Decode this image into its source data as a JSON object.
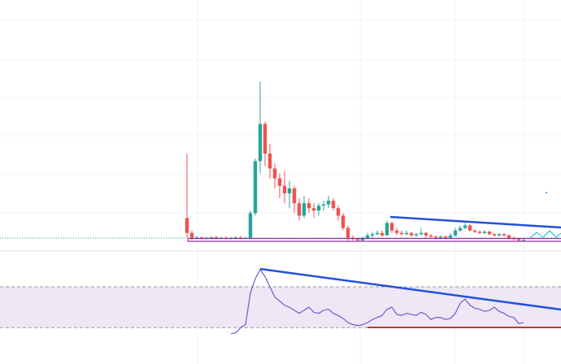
{
  "chart_data": [
    {
      "type": "candlestick",
      "ylim": [
        0,
        100
      ],
      "up_color": "#26a69a",
      "down_color": "#ef5350",
      "open": [
        12,
        6,
        4,
        4.2,
        3.8,
        4,
        4.3,
        3.9,
        4.1,
        3.8,
        4,
        4.2,
        3.9,
        4,
        14,
        35,
        50,
        38,
        32,
        28,
        25,
        22,
        24,
        18,
        13,
        18,
        16,
        15,
        17,
        17.5,
        19,
        16,
        13,
        8,
        4,
        3.5,
        3,
        4,
        5,
        5.5,
        6,
        5,
        10,
        7,
        6,
        5.5,
        6,
        5,
        5.5,
        6,
        5,
        4.5,
        4,
        4.5,
        4,
        5,
        7,
        8,
        9,
        7,
        6.5,
        6,
        6.5,
        5.5,
        5,
        5.5,
        5,
        4,
        3.5,
        3
      ],
      "high": [
        38,
        7,
        4.8,
        4.6,
        4.5,
        4.6,
        4.8,
        4.5,
        4.6,
        4.4,
        4.7,
        4.8,
        4.5,
        15,
        36,
        67,
        51,
        42,
        34,
        30,
        31,
        27,
        25,
        20,
        21,
        20,
        18,
        18,
        19,
        21,
        20,
        17,
        14,
        9,
        5,
        4,
        4.5,
        6,
        6.5,
        7,
        7,
        11,
        10.5,
        8,
        7,
        7,
        6.5,
        6,
        8,
        6.5,
        5.5,
        5,
        5,
        5,
        6,
        8,
        9,
        10,
        9.5,
        7.5,
        7,
        7,
        7,
        6,
        6,
        6,
        5.5,
        4.5,
        4,
        3.5
      ],
      "low": [
        4,
        3,
        3.4,
        3.5,
        3.3,
        3.5,
        3.6,
        3.4,
        3.5,
        3.3,
        3.5,
        3.6,
        3.4,
        3.5,
        13,
        30,
        33,
        28,
        24,
        20,
        18,
        16,
        14,
        11,
        12,
        14,
        12,
        13,
        15,
        16,
        15,
        11,
        7,
        3,
        3,
        2.8,
        2.8,
        3.5,
        4,
        5,
        4.5,
        5,
        6,
        5,
        5,
        5,
        4.5,
        4.5,
        5,
        4,
        4,
        3.5,
        3.5,
        3.5,
        3.5,
        4.5,
        6.5,
        7.5,
        6.5,
        6,
        5.5,
        5.5,
        5,
        4.5,
        4.5,
        4.5,
        3.5,
        3,
        2.5,
        2.5
      ],
      "close": [
        6,
        4,
        4.2,
        3.8,
        4,
        4.3,
        3.9,
        4.1,
        3.8,
        4,
        4.2,
        3.9,
        4,
        14,
        35,
        50,
        38,
        32,
        28,
        25,
        22,
        24,
        18,
        13,
        18,
        16,
        15,
        17,
        17.5,
        19,
        16,
        13,
        8,
        4,
        3.5,
        3,
        4,
        5,
        5.5,
        6,
        5,
        10,
        7,
        6,
        5.5,
        6,
        5,
        5.5,
        6,
        5,
        4.5,
        4,
        4.5,
        4,
        5,
        7,
        8,
        9,
        7,
        6.5,
        6,
        6.5,
        5.5,
        5,
        5.5,
        5,
        4,
        3.5,
        3,
        3.2
      ]
    },
    {
      "type": "line",
      "ylim": [
        0,
        105
      ],
      "bands": [
        30,
        70
      ],
      "color": "#7e57c2",
      "band_fill": "#ede7f6",
      "values": [
        null,
        null,
        null,
        null,
        null,
        null,
        null,
        null,
        null,
        24,
        25,
        30,
        33,
        64,
        78,
        87,
        80,
        70,
        60,
        56,
        52,
        50,
        47,
        44,
        47,
        50,
        45,
        44,
        47,
        48,
        44,
        42,
        39,
        35,
        33,
        32,
        33,
        35,
        38,
        40,
        42,
        48,
        50,
        43,
        42,
        44,
        43,
        42,
        45,
        43,
        38,
        40,
        40,
        38,
        39,
        44,
        54,
        58,
        52,
        49,
        48,
        46,
        47,
        50,
        46,
        44,
        41,
        40,
        34,
        35
      ]
    }
  ]
}
